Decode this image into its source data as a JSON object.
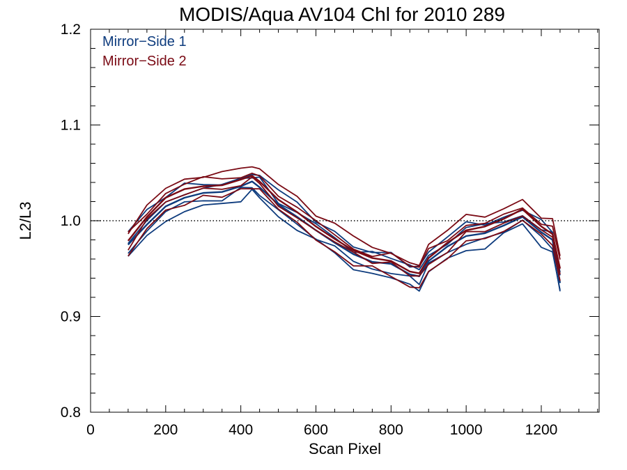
{
  "chart_data": {
    "type": "line",
    "title": "MODIS/Aqua AV104 Chl for 2010 289",
    "xlabel": "Scan Pixel",
    "ylabel": "L2/L3",
    "xlim": [
      0,
      1354
    ],
    "ylim": [
      0.8,
      1.2
    ],
    "x_ticks": [
      0,
      200,
      400,
      600,
      800,
      1000,
      1200
    ],
    "x_tick_labels": [
      "0",
      "200",
      "400",
      "600",
      "800",
      "1000",
      "1200"
    ],
    "y_ticks": [
      0.8,
      0.9,
      1.0,
      1.1,
      1.2
    ],
    "y_tick_labels": [
      "0.8",
      "0.9",
      "1.0",
      "1.1",
      "1.2"
    ],
    "reference_line": {
      "y": 1.0,
      "style": "dotted"
    },
    "legend_position": "top-left",
    "grid": false,
    "x": [
      100,
      150,
      200,
      250,
      300,
      350,
      400,
      430,
      450,
      500,
      550,
      600,
      650,
      700,
      750,
      800,
      850,
      875,
      900,
      950,
      1000,
      1050,
      1100,
      1150,
      1200,
      1230,
      1250
    ],
    "series": [
      {
        "name": "Mirror−Side 1",
        "color": "#0d3b7d",
        "values": [
          0.975,
          0.996,
          1.015,
          1.024,
          1.029,
          1.03,
          1.036,
          1.041,
          1.035,
          1.017,
          1.004,
          0.99,
          0.977,
          0.965,
          0.957,
          0.955,
          0.944,
          0.942,
          0.958,
          0.973,
          0.984,
          0.987,
          0.995,
          1.004,
          0.988,
          0.98,
          0.935
        ]
      },
      {
        "name": "Mirror−Side 2",
        "color": "#7a0a14",
        "values": [
          0.979,
          1.004,
          1.024,
          1.033,
          1.036,
          1.037,
          1.043,
          1.047,
          1.041,
          1.022,
          1.009,
          0.994,
          0.981,
          0.969,
          0.961,
          0.958,
          0.947,
          0.945,
          0.961,
          0.977,
          0.99,
          0.994,
          1.002,
          1.012,
          0.994,
          0.986,
          0.95
        ]
      }
    ]
  }
}
